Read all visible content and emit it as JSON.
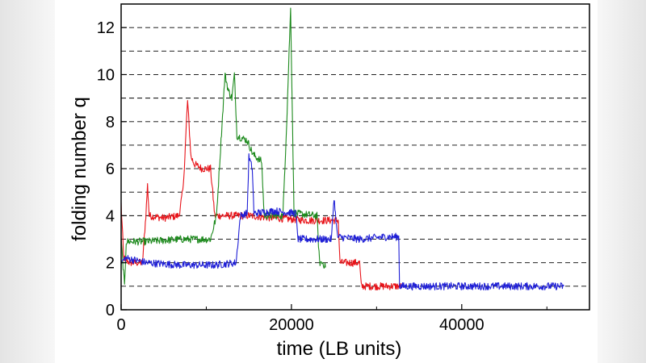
{
  "chart_data": {
    "type": "line",
    "title": "",
    "xlabel": "time (LB units)",
    "ylabel": "folding number q",
    "xlim": [
      0,
      55000
    ],
    "ylim": [
      0,
      13
    ],
    "x_ticks": [
      0,
      20000,
      40000
    ],
    "x_tick_labels": [
      "0",
      "20000",
      "40000"
    ],
    "y_ticks": [
      0,
      2,
      4,
      6,
      8,
      10,
      12
    ],
    "y_tick_labels": [
      "0",
      "2",
      "4",
      "6",
      "8",
      "10",
      "12"
    ],
    "grid": "horizontal dashed at each integer q",
    "legend": "none",
    "series": [
      {
        "color": "#e8141a",
        "points": [
          [
            0,
            4.5
          ],
          [
            300,
            2.2
          ],
          [
            1000,
            2.0
          ],
          [
            2500,
            2.0
          ],
          [
            2900,
            4.0
          ],
          [
            3100,
            5.3
          ],
          [
            3300,
            4.0
          ],
          [
            5000,
            3.9
          ],
          [
            6800,
            4.0
          ],
          [
            7300,
            5.2
          ],
          [
            7800,
            8.9
          ],
          [
            8200,
            6.5
          ],
          [
            8600,
            6.2
          ],
          [
            9500,
            6.0
          ],
          [
            10500,
            6.0
          ],
          [
            11000,
            4.0
          ],
          [
            15000,
            4.0
          ],
          [
            18000,
            3.9
          ],
          [
            22000,
            3.8
          ],
          [
            24000,
            3.8
          ],
          [
            25500,
            3.8
          ],
          [
            25700,
            2.0
          ],
          [
            28000,
            2.0
          ],
          [
            28200,
            1.0
          ],
          [
            30000,
            1.0
          ],
          [
            33000,
            1.0
          ]
        ]
      },
      {
        "color": "#1d8a1d",
        "points": [
          [
            0,
            3.0
          ],
          [
            400,
            1.0
          ],
          [
            600,
            2.9
          ],
          [
            3000,
            2.9
          ],
          [
            7000,
            3.0
          ],
          [
            10500,
            3.0
          ],
          [
            11200,
            4.0
          ],
          [
            12200,
            10.0
          ],
          [
            12600,
            9.3
          ],
          [
            13000,
            9.0
          ],
          [
            13300,
            10.0
          ],
          [
            13600,
            7.4
          ],
          [
            14800,
            7.2
          ],
          [
            15500,
            6.6
          ],
          [
            16500,
            6.3
          ],
          [
            16800,
            4.0
          ],
          [
            19000,
            4.0
          ],
          [
            19500,
            8.5
          ],
          [
            19900,
            12.8
          ],
          [
            20300,
            4.1
          ],
          [
            23000,
            4.0
          ],
          [
            23300,
            2.0
          ],
          [
            23700,
            2.0
          ],
          [
            24000,
            1.8
          ]
        ]
      },
      {
        "color": "#1f1fd6",
        "points": [
          [
            0,
            2.0
          ],
          [
            500,
            2.2
          ],
          [
            3000,
            2.0
          ],
          [
            7000,
            1.9
          ],
          [
            11000,
            1.9
          ],
          [
            13500,
            2.0
          ],
          [
            14000,
            4.0
          ],
          [
            14800,
            4.1
          ],
          [
            15000,
            6.5
          ],
          [
            15400,
            6.0
          ],
          [
            15600,
            4.1
          ],
          [
            18000,
            4.2
          ],
          [
            20500,
            4.1
          ],
          [
            20800,
            3.0
          ],
          [
            23000,
            3.0
          ],
          [
            24700,
            3.0
          ],
          [
            25000,
            4.8
          ],
          [
            25400,
            3.1
          ],
          [
            28000,
            3.0
          ],
          [
            31000,
            3.1
          ],
          [
            32600,
            3.1
          ],
          [
            32700,
            1.0
          ],
          [
            36000,
            1.0
          ],
          [
            40000,
            1.0
          ],
          [
            45000,
            1.0
          ],
          [
            50000,
            1.0
          ],
          [
            52000,
            1.0
          ]
        ]
      }
    ]
  }
}
